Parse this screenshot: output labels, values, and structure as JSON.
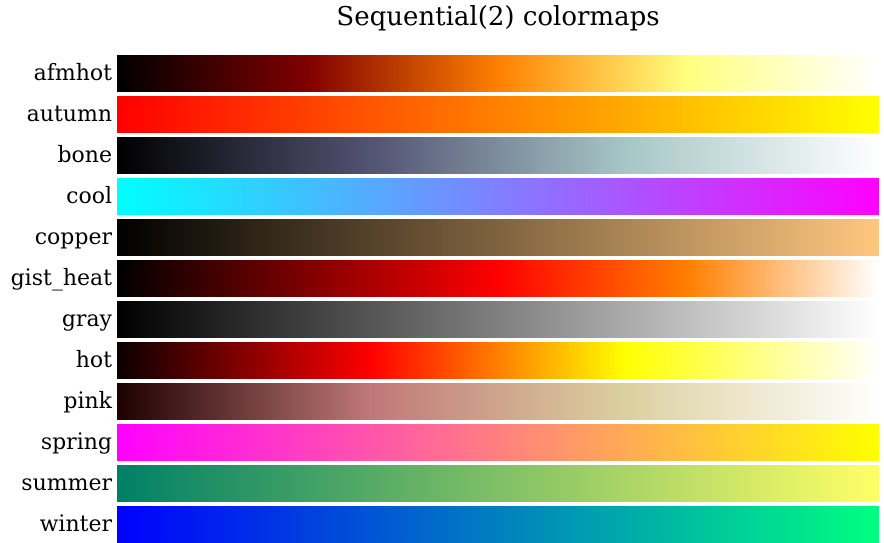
{
  "chart_data": {
    "type": "heatmap",
    "title": "Sequential(2) colormaps",
    "xlabel": "",
    "ylabel": "",
    "grid": false,
    "colormaps": [
      {
        "name": "afmhot",
        "stops": [
          "#000000",
          "#800000",
          "#ff8000",
          "#ffff80",
          "#ffffff"
        ]
      },
      {
        "name": "autumn",
        "stops": [
          "#ff0000",
          "#ff8000",
          "#ffff00"
        ]
      },
      {
        "name": "bone",
        "stops": [
          "#000000",
          "#535373",
          "#a6c6c6",
          "#ffffff"
        ]
      },
      {
        "name": "cool",
        "stops": [
          "#00ffff",
          "#ff00ff"
        ]
      },
      {
        "name": "copper",
        "stops": [
          "#000000",
          "#ffc77f"
        ]
      },
      {
        "name": "gist_heat",
        "stops": [
          "#000000",
          "#800000",
          "#ff0000",
          "#ff8000",
          "#ffffff"
        ]
      },
      {
        "name": "gray",
        "stops": [
          "#000000",
          "#ffffff"
        ]
      },
      {
        "name": "hot",
        "stops": [
          "#0b0000",
          "#ff0000",
          "#ffff00",
          "#ffffff"
        ]
      },
      {
        "name": "pink",
        "stops": [
          "#1e0000",
          "#c07878",
          "#dcd0a0",
          "#ffffff"
        ]
      },
      {
        "name": "spring",
        "stops": [
          "#ff00ff",
          "#ffff00"
        ]
      },
      {
        "name": "summer",
        "stops": [
          "#008066",
          "#ffff66"
        ]
      },
      {
        "name": "winter",
        "stops": [
          "#0000ff",
          "#00ff80"
        ]
      }
    ]
  }
}
